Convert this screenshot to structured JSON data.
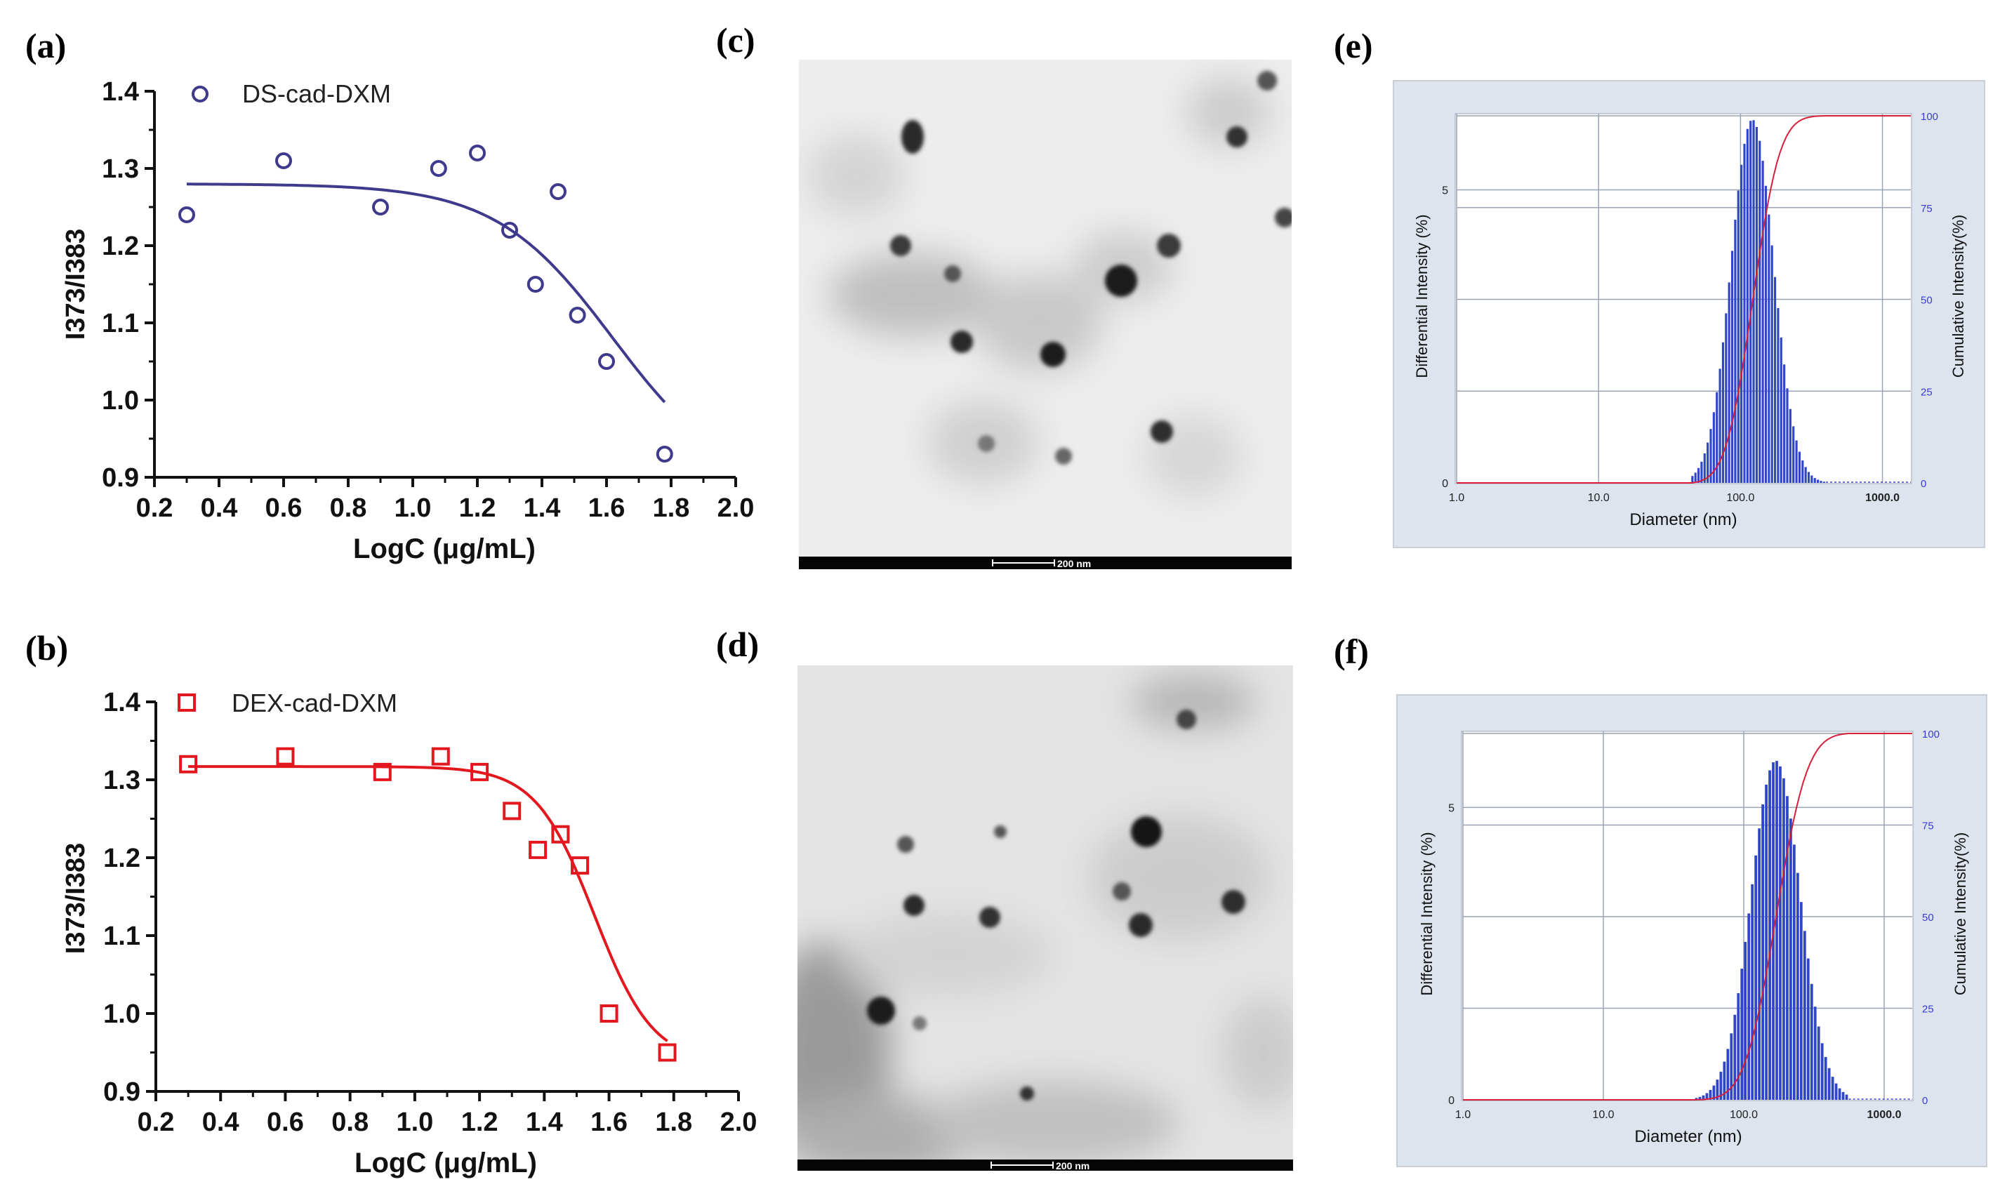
{
  "panels": {
    "a": "(a)",
    "b": "(b)",
    "c": "(c)",
    "d": "(d)",
    "e": "(e)",
    "f": "(f)"
  },
  "colors": {
    "ds": "#3f3a8c",
    "dex": "#e3171e",
    "bars": "#2f46c6",
    "cumulative": "#d6203a",
    "blue_text": "#3a3ad8"
  },
  "chart_data": [
    {
      "id": "a",
      "type": "scatter",
      "xlabel": "LogC (μg/mL)",
      "ylabel": "I373/I383",
      "xlim": [
        0.2,
        2.0
      ],
      "ylim": [
        0.9,
        1.4
      ],
      "xticks": [
        "0.2",
        "0.4",
        "0.6",
        "0.8",
        "1.0",
        "1.2",
        "1.4",
        "1.6",
        "1.8",
        "2.0"
      ],
      "yticks": [
        "0.9",
        "1.0",
        "1.1",
        "1.2",
        "1.3",
        "1.4"
      ],
      "legend": "DS-cad-DXM",
      "marker": "circle",
      "x": [
        0.3,
        0.6,
        0.9,
        1.08,
        1.2,
        1.3,
        1.38,
        1.45,
        1.51,
        1.6,
        1.78
      ],
      "y": [
        1.24,
        1.31,
        1.25,
        1.3,
        1.32,
        1.22,
        1.15,
        1.27,
        1.11,
        1.05,
        0.93
      ],
      "fit": {
        "top": 1.28,
        "bottom": 0.88,
        "x50": 1.62,
        "slope": 5.5
      }
    },
    {
      "id": "b",
      "type": "scatter",
      "xlabel": "LogC (μg/mL)",
      "ylabel": "I373/I383",
      "xlim": [
        0.2,
        2.0
      ],
      "ylim": [
        0.9,
        1.4
      ],
      "xticks": [
        "0.2",
        "0.4",
        "0.6",
        "0.8",
        "1.0",
        "1.2",
        "1.4",
        "1.6",
        "1.8",
        "2.0"
      ],
      "yticks": [
        "0.9",
        "1.0",
        "1.1",
        "1.2",
        "1.3",
        "1.4"
      ],
      "legend": "DEX-cad-DXM",
      "marker": "square",
      "x": [
        0.3,
        0.6,
        0.9,
        1.08,
        1.2,
        1.3,
        1.38,
        1.45,
        1.51,
        1.6,
        1.78
      ],
      "y": [
        1.32,
        1.33,
        1.31,
        1.33,
        1.31,
        1.26,
        1.21,
        1.23,
        1.19,
        1.0,
        0.95
      ],
      "fit": {
        "top": 1.317,
        "bottom": 0.935,
        "x50": 1.555,
        "slope": 11
      }
    },
    {
      "id": "e",
      "type": "bar",
      "xlabel": "Diameter (nm)",
      "ylabel": "Differential Intensity (%)",
      "y2label": "Cumulative Intensity(%)",
      "xticks": [
        "1.0",
        "10.0",
        "100.0",
        "1000.0"
      ],
      "yticks_left": [
        "0",
        "5"
      ],
      "yticks_right": [
        "0",
        "25",
        "50",
        "75",
        "100"
      ],
      "distribution": {
        "peak_nm": 122,
        "log_sd": 0.15,
        "peak_value": 6.2,
        "ymax_left": 6.3,
        "n_bins": 44,
        "min_nm": 45,
        "max_nm": 400
      }
    },
    {
      "id": "f",
      "type": "bar",
      "xlabel": "Diameter (nm)",
      "ylabel": "Differential Intensity (%)",
      "y2label": "Cumulative Intensity(%)",
      "xticks": [
        "1.0",
        "10.0",
        "100.0",
        "1000.0"
      ],
      "yticks_left": [
        "0",
        "5"
      ],
      "yticks_right": [
        "0",
        "25",
        "50",
        "75",
        "100"
      ],
      "distribution": {
        "peak_nm": 170,
        "log_sd": 0.175,
        "peak_value": 5.8,
        "ymax_left": 6.3,
        "n_bins": 44,
        "min_nm": 45,
        "max_nm": 560
      }
    }
  ],
  "tem": [
    {
      "id": "c",
      "scale": "200 nm"
    },
    {
      "id": "d",
      "scale": "200 nm"
    }
  ]
}
